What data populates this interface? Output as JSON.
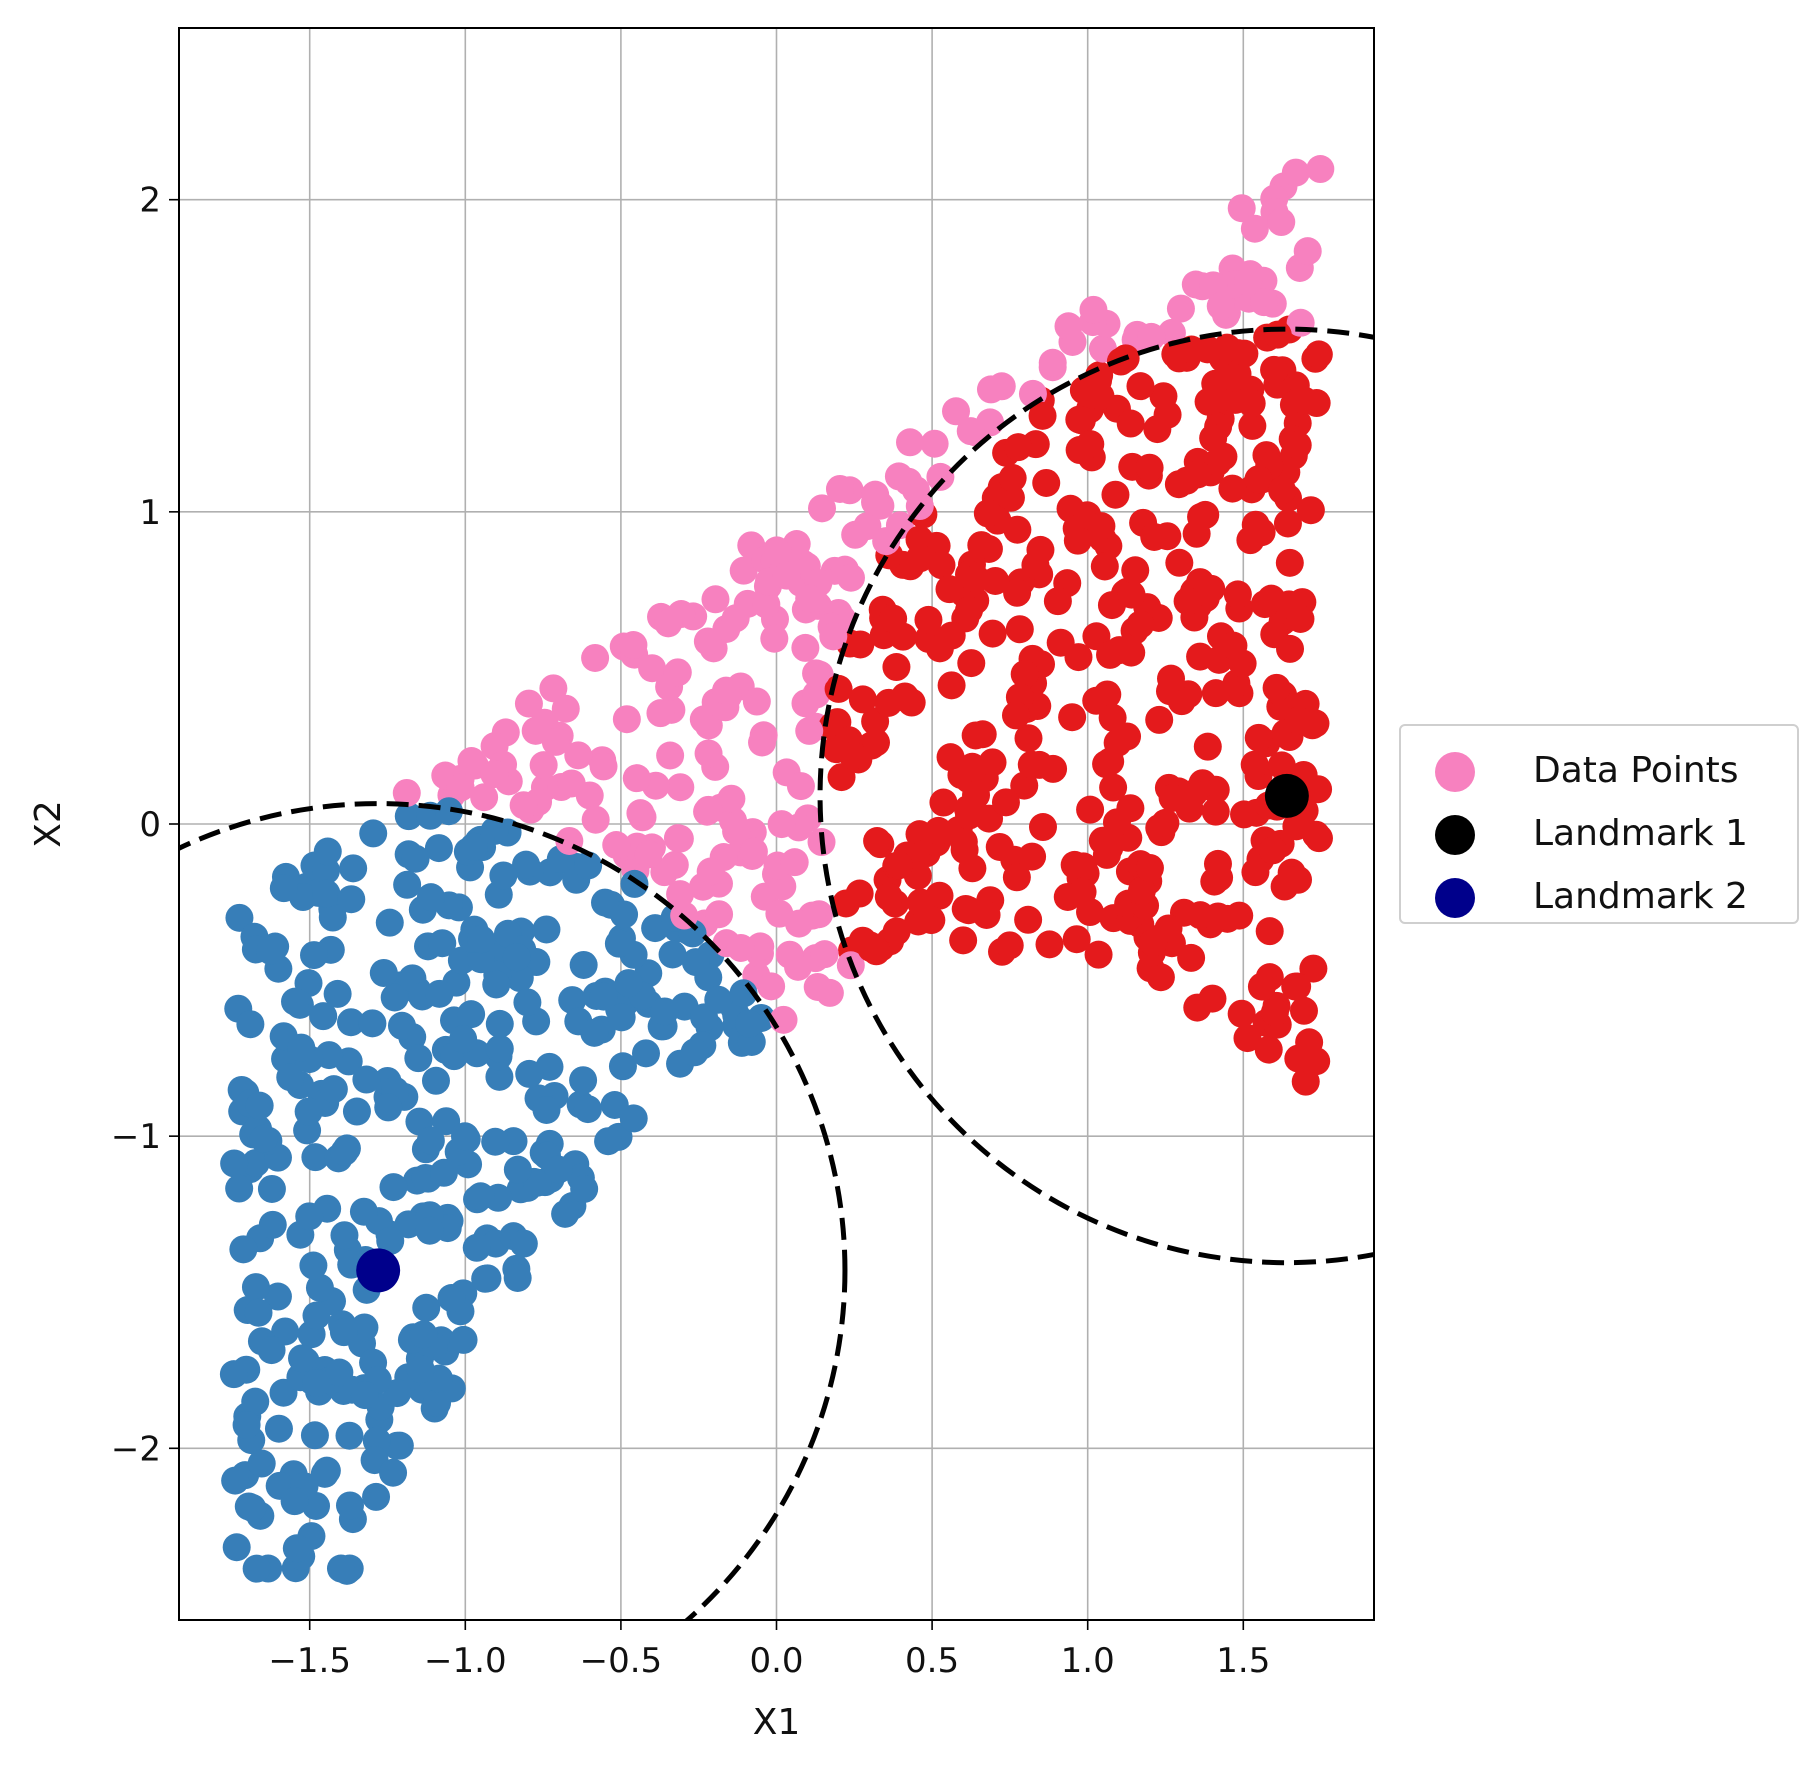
{
  "chart_data": {
    "type": "scatter",
    "title": "",
    "xlabel": "X1",
    "ylabel": "X2",
    "xlim": [
      -1.92,
      1.92
    ],
    "ylim": [
      -2.55,
      2.55
    ],
    "xticks": [
      -1.5,
      -1.0,
      -0.5,
      0.0,
      0.5,
      1.0,
      1.5
    ],
    "xtick_labels": [
      "−1.5",
      "−1.0",
      "−0.5",
      "0.0",
      "0.5",
      "1.0",
      "1.5"
    ],
    "yticks": [
      -2,
      -1,
      0,
      1,
      2
    ],
    "ytick_labels": [
      "−2",
      "−1",
      "0",
      "1",
      "2"
    ],
    "grid": true,
    "legend_placement": "right, outside axes, vertically centered",
    "colors": {
      "pink": "#f781bf",
      "red": "#e41a1c",
      "blue": "#377eb8",
      "landmark1": "#000000",
      "landmark2": "#00008b",
      "circle": "#000000"
    },
    "data_generation": {
      "note": "scatter points sampled uniformly inside the cloud region bounded by x in [-1.75, 1.75], y between 0.65*x-1.1-0.45*(x^2-1) and 0.7*x+0.95",
      "n_points": 1000
    },
    "landmarks": [
      {
        "name": "Landmark 1",
        "x": 1.64,
        "y": 0.09,
        "color": "#000000",
        "radius": 1.5
      },
      {
        "name": "Landmark 2",
        "x": -1.28,
        "y": -1.43,
        "color": "#00008b",
        "radius": 1.5
      }
    ],
    "series": [
      {
        "name": "Data Points",
        "color": "#f781bf",
        "role": "points outside both circles"
      },
      {
        "name": "",
        "color": "#e41a1c",
        "role": "points within radius of Landmark 1"
      },
      {
        "name": "",
        "color": "#377eb8",
        "role": "points within radius of Landmark 2"
      },
      {
        "name": "Landmark 1",
        "color": "#000000",
        "role": "landmark marker"
      },
      {
        "name": "Landmark 2",
        "color": "#00008b",
        "role": "landmark marker"
      }
    ],
    "legend": [
      "Data Points",
      "Landmark 1",
      "Landmark 2"
    ]
  }
}
